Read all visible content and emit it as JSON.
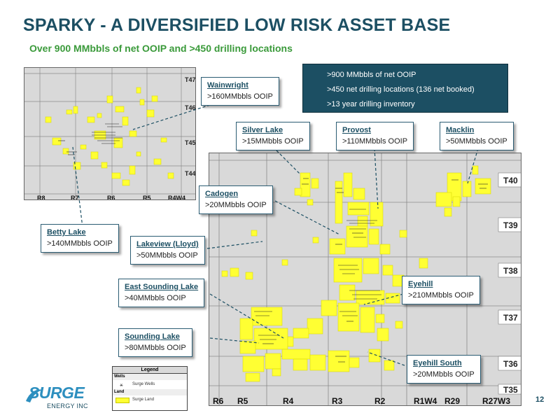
{
  "title": "SPARKY - A DIVERSIFIED LOW RISK ASSET BASE",
  "subtitle": "Over 900 MMbbls of net OOIP and >450 drilling locations",
  "summary": [
    ">900 MMbbls of net OOIP",
    ">450 net drilling locations (136 net booked)",
    ">13 year drilling inventory"
  ],
  "inset_map": {
    "townships": [
      "T47",
      "T46",
      "T45",
      "T44"
    ],
    "ranges": [
      "R8",
      "R7",
      "R6",
      "R5",
      "R4W4"
    ]
  },
  "main_map": {
    "townships": [
      "T40",
      "T39",
      "T38",
      "T37",
      "T36",
      "T35"
    ],
    "ranges": [
      "R6",
      "R5",
      "R4",
      "R3",
      "R2",
      "R1W4",
      "R29",
      "R27W3"
    ]
  },
  "callouts": {
    "wainwright": {
      "name": "Wainwright",
      "value": ">160MMbbls OOIP"
    },
    "silver_lake": {
      "name": "Silver Lake",
      "value": ">15MMbbls OOIP"
    },
    "provost": {
      "name": "Provost",
      "value": ">110MMbbls OOIP"
    },
    "macklin": {
      "name": "Macklin",
      "value": ">50MMbbls OOIP"
    },
    "cadogen": {
      "name": "Cadogen",
      "value": ">20MMbbls OOIP"
    },
    "betty_lake": {
      "name": "Betty Lake",
      "value": ">140MMbbls OOIP"
    },
    "lakeview": {
      "name": "Lakeview (Lloyd)",
      "value": ">50MMbbls OOIP"
    },
    "east_sounding_lake": {
      "name": "East Sounding Lake",
      "value": ">40MMbbls OOIP"
    },
    "eyehill": {
      "name": "Eyehill",
      "value": ">210MMbbls OOIP"
    },
    "sounding_lake": {
      "name": "Sounding Lake",
      "value": ">80MMbbls OOIP"
    },
    "eyehill_south": {
      "name": "Eyehill South",
      "value": ">20MMbbls OOIP"
    }
  },
  "legend": {
    "title": "Legend",
    "wells_section": "Wells",
    "wells_label": "Surge Wells",
    "land_section": "Land",
    "land_label": "Surge Land"
  },
  "logo": {
    "word": "SURGE",
    "sub": "ENERGY INC"
  },
  "page_number": "12",
  "colors": {
    "title": "#1c4f63",
    "subtitle": "#3a9a3a",
    "summary_bg": "#1c4f63",
    "land": "#ffff33",
    "map_bg": "#d9d9d9",
    "logo": "#2d8fbf"
  }
}
